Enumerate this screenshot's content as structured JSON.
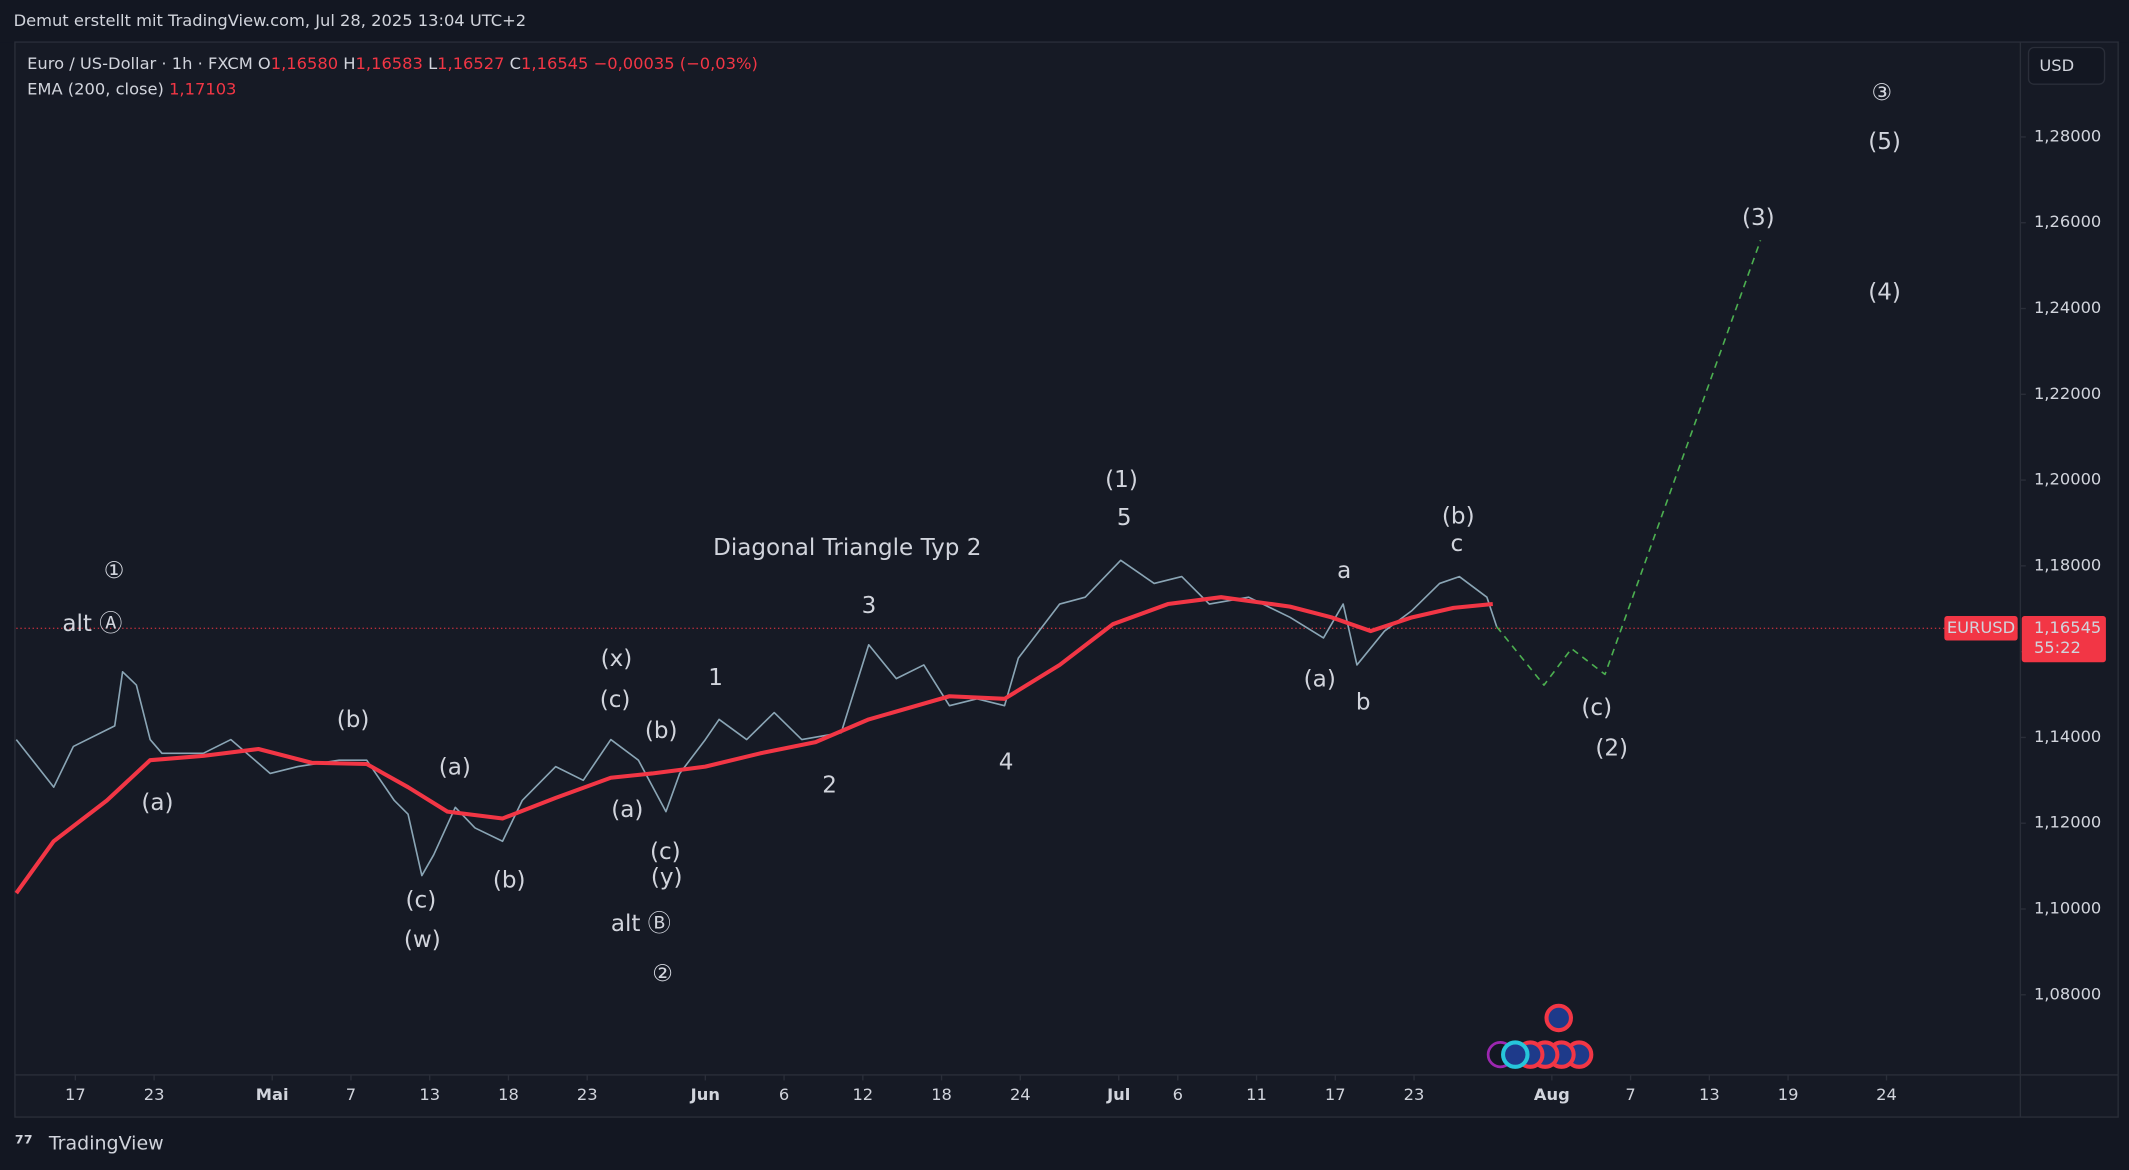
{
  "header": {
    "text": "Demut erstellt mit TradingView.com, Jul 28, 2025 13:04 UTC+2"
  },
  "legend": {
    "symbol": "Euro / US-Dollar · 1h · FXCM",
    "ohlc": [
      {
        "label": "O",
        "value": "1,16580"
      },
      {
        "label": "H",
        "value": "1,16583"
      },
      {
        "label": "L",
        "value": "1,16527"
      },
      {
        "label": "C",
        "value": "1,16545"
      }
    ],
    "change": "−0,00035 (−0,03%)",
    "indicator": "EMA (200, close)",
    "indicator_value": "1,17103"
  },
  "currency_button": "USD",
  "price_tag": {
    "symbol": "EURUSD",
    "countdown": "55:22"
  },
  "footer": {
    "brand": "TradingView"
  },
  "chart_data": {
    "type": "line",
    "xlim": [
      0,
      101.8
    ],
    "xticks": [
      {
        "value": 3,
        "label": "17"
      },
      {
        "value": 7,
        "label": "23"
      },
      {
        "value": 13,
        "label": "Mai"
      },
      {
        "value": 17,
        "label": "7"
      },
      {
        "value": 21,
        "label": "13"
      },
      {
        "value": 25,
        "label": "18"
      },
      {
        "value": 29,
        "label": "23"
      },
      {
        "value": 35,
        "label": "Jun"
      },
      {
        "value": 39,
        "label": "6"
      },
      {
        "value": 43,
        "label": "12"
      },
      {
        "value": 47,
        "label": "18"
      },
      {
        "value": 51,
        "label": "24"
      },
      {
        "value": 56,
        "label": "Jul"
      },
      {
        "value": 59,
        "label": "6"
      },
      {
        "value": 63,
        "label": "11"
      },
      {
        "value": 67,
        "label": "17"
      },
      {
        "value": 71,
        "label": "23"
      },
      {
        "value": 78,
        "label": "Aug"
      },
      {
        "value": 82,
        "label": "7"
      },
      {
        "value": 86,
        "label": "13"
      },
      {
        "value": 90,
        "label": "19"
      },
      {
        "value": 95,
        "label": "24"
      }
    ],
    "ylim": [
      1.0613,
      1.3018
    ],
    "yticks": [
      {
        "value": 1.08,
        "label": "1,08000"
      },
      {
        "value": 1.1,
        "label": "1,10000"
      },
      {
        "value": 1.12,
        "label": "1,12000"
      },
      {
        "value": 1.14,
        "label": "1,14000"
      },
      {
        "value": 1.16,
        "label": "1,16000"
      },
      {
        "value": 1.18,
        "label": "1,18000"
      },
      {
        "value": 1.2,
        "label": "1,20000"
      },
      {
        "value": 1.22,
        "label": "1,22000"
      },
      {
        "value": 1.24,
        "label": "1,24000"
      },
      {
        "value": 1.26,
        "label": "1,26000"
      },
      {
        "value": 1.28,
        "label": "1,28000"
      }
    ],
    "grid": false,
    "last_price": {
      "value": 1.16545,
      "label": "1,16545"
    },
    "series": [
      {
        "color": "#8aa5b5",
        "dashed": false,
        "width": 1.2,
        "x": [
          0,
          1.9,
          2.9,
          5.0,
          5.4,
          6.1,
          6.8,
          7.4,
          9.5,
          10.9,
          12.9,
          14.3,
          16.4,
          17.8,
          19.2,
          19.9,
          20.6,
          21.2,
          22.3,
          23.3,
          24.7,
          25.7,
          27.4,
          28.8,
          30.2,
          31.6,
          33.0,
          33.7,
          35.0,
          35.7,
          37.1,
          38.5,
          39.9,
          41.9,
          43.3,
          44.7,
          46.1,
          47.4,
          48.8,
          50.2,
          50.9,
          53.0,
          54.3,
          56.1,
          57.8,
          59.2,
          60.6,
          62.6,
          64.7,
          66.4,
          67.4,
          68.1,
          69.5,
          70.9,
          72.3,
          73.3,
          74.7,
          75.2
        ],
        "values": [
          1.1395,
          1.1284,
          1.1379,
          1.1427,
          1.1553,
          1.1522,
          1.1395,
          1.1363,
          1.1363,
          1.1395,
          1.1316,
          1.1332,
          1.1347,
          1.1347,
          1.1253,
          1.1221,
          1.1078,
          1.1126,
          1.1237,
          1.1189,
          1.1158,
          1.1253,
          1.1332,
          1.13,
          1.1395,
          1.1347,
          1.1227,
          1.1316,
          1.1395,
          1.1442,
          1.1395,
          1.1458,
          1.1395,
          1.1411,
          1.1616,
          1.1537,
          1.1569,
          1.1474,
          1.149,
          1.1474,
          1.1585,
          1.1711,
          1.1727,
          1.1813,
          1.1759,
          1.1775,
          1.1711,
          1.1727,
          1.168,
          1.1632,
          1.1711,
          1.1569,
          1.1648,
          1.1696,
          1.1759,
          1.1775,
          1.1727,
          1.1658
        ]
      },
      {
        "color": "#f23645",
        "dashed": false,
        "width": 3,
        "x": [
          0,
          1.9,
          4.6,
          6.8,
          9.5,
          12.3,
          15.0,
          17.8,
          19.9,
          21.9,
          24.7,
          27.4,
          30.2,
          32.3,
          35.0,
          37.8,
          40.6,
          43.3,
          47.4,
          50.2,
          53.0,
          55.7,
          58.5,
          61.2,
          64.7,
          66.8,
          68.8,
          70.9,
          73.0,
          75.0
        ],
        "values": [
          1.1037,
          1.1158,
          1.1253,
          1.1347,
          1.1357,
          1.1373,
          1.1341,
          1.1338,
          1.1284,
          1.1227,
          1.1211,
          1.1259,
          1.1306,
          1.1316,
          1.1332,
          1.1363,
          1.1389,
          1.1442,
          1.1496,
          1.149,
          1.1569,
          1.1664,
          1.1711,
          1.1727,
          1.1705,
          1.168,
          1.1648,
          1.168,
          1.1702,
          1.1711
        ]
      },
      {
        "color": "#4caf50",
        "dashed": true,
        "width": 1.2,
        "x": [
          75.2,
          77.6,
          79.0,
          80.7,
          88.6
        ],
        "values": [
          1.1658,
          1.1522,
          1.1607,
          1.1547,
          1.2559
        ]
      }
    ],
    "annotations": [
      {
        "text": "①",
        "color": "#ff9800"
      },
      {
        "text": "alt Ⓐ",
        "color": "#ffeb3b"
      },
      {
        "text": "(a)",
        "color": "#26c6da"
      },
      {
        "text": "(b)",
        "color": "#26c6da"
      },
      {
        "text": "(a)",
        "color": "#ffffff"
      },
      {
        "text": "(c)",
        "color": "#26c6da"
      },
      {
        "text": "(w)",
        "color": "#e91e63"
      },
      {
        "text": "(b)",
        "color": "#ffffff"
      },
      {
        "text": "(x)",
        "color": "#e91e63"
      },
      {
        "text": "(c)",
        "color": "#ffffff"
      },
      {
        "text": "(b)",
        "color": "#4caf50"
      },
      {
        "text": "(a)",
        "color": "#4caf50"
      },
      {
        "text": "(c)",
        "color": "#4caf50"
      },
      {
        "text": "(y)",
        "color": "#e91e63"
      },
      {
        "text": "alt Ⓑ",
        "color": "#ffeb3b"
      },
      {
        "text": "②",
        "color": "#ff9800"
      },
      {
        "text": "1",
        "color": "#ffffff"
      },
      {
        "text": "2",
        "color": "#ffffff"
      },
      {
        "text": "3",
        "color": "#ffffff"
      },
      {
        "text": "4",
        "color": "#ffffff"
      },
      {
        "text": "5",
        "color": "#ffffff"
      },
      {
        "text": "(1)",
        "color": "#4caf50"
      },
      {
        "text": "Diagonal Triangle Typ 2",
        "color": "#ffffff"
      },
      {
        "text": "a",
        "color": "#ffffff"
      },
      {
        "text": "(a)",
        "color": "#26c6da"
      },
      {
        "text": "b",
        "color": "#ffffff"
      },
      {
        "text": "(b)",
        "color": "#26c6da"
      },
      {
        "text": "c",
        "color": "#ffffff"
      },
      {
        "text": "(c)",
        "color": "#26c6da"
      },
      {
        "text": "(2)",
        "color": "#4caf50"
      },
      {
        "text": "(3)",
        "color": "#4caf50"
      },
      {
        "text": "(4)",
        "color": "#4caf50"
      },
      {
        "text": "(5)",
        "color": "#4caf50"
      },
      {
        "text": "③",
        "color": "#ff9800"
      }
    ]
  }
}
